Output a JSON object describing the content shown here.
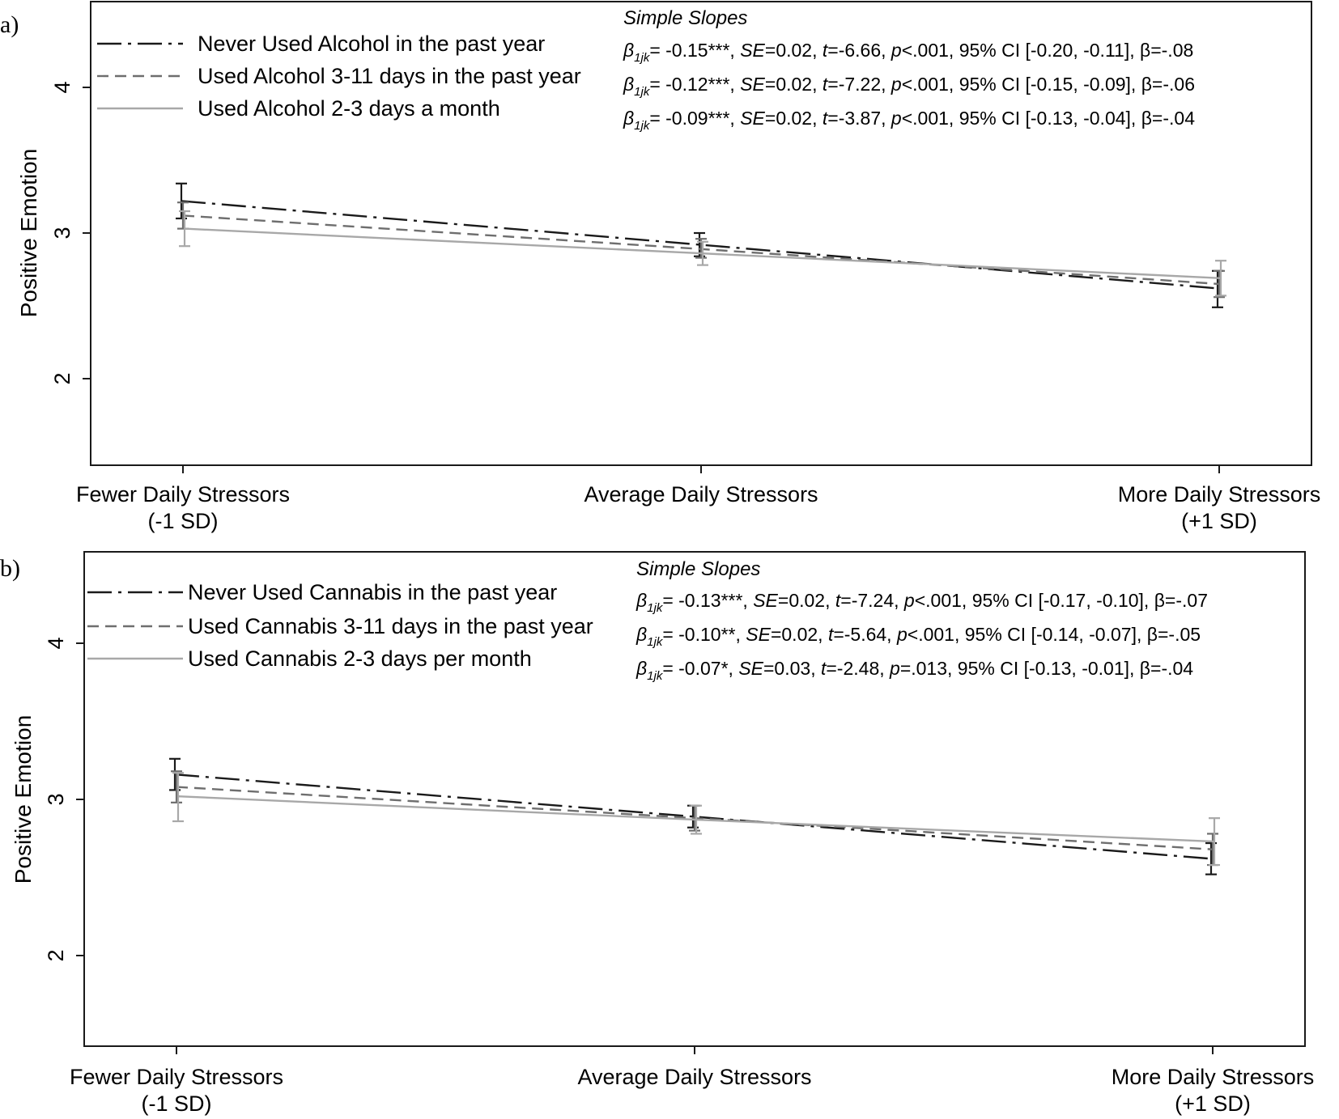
{
  "chart_data": [
    {
      "type": "line",
      "panel": "a)",
      "ylabel": "Positive Emotion",
      "ylim": [
        1.4,
        4.6
      ],
      "yticks": [
        "2",
        "3",
        "4"
      ],
      "categories": [
        {
          "line1": "Fewer Daily Stressors",
          "line2": "(-1 SD)"
        },
        {
          "line1": "Average Daily Stressors",
          "line2": ""
        },
        {
          "line1": "More Daily Stressors",
          "line2": "(+1 SD)"
        }
      ],
      "stats_title": "Simple Slopes",
      "series": [
        {
          "name": "Never Used Alcohol in the past year",
          "style": "dashdot",
          "color": "#1a1a1a",
          "values": [
            3.22,
            2.92,
            2.62
          ],
          "ci_low": [
            3.1,
            2.84,
            2.49
          ],
          "ci_high": [
            3.34,
            3.0,
            2.74
          ],
          "stat": {
            "estimate": "= -0.15***",
            "se": "=0.02",
            "t": "=-6.66",
            "p": "<.001",
            "ci": "95% CI [-0.20, -0.11]",
            "std_beta": "β=-.08"
          }
        },
        {
          "name": "Used Alcohol 3-11 days in the past year",
          "style": "dashed",
          "color": "#6e6e6e",
          "values": [
            3.12,
            2.89,
            2.65
          ],
          "ci_low": [
            3.03,
            2.83,
            2.56
          ],
          "ci_high": [
            3.21,
            2.96,
            2.74
          ],
          "stat": {
            "estimate": "= -0.12***",
            "se": "=0.02",
            "t": "=-7.22",
            "p": "<.001",
            "ci": "95% CI [-0.15, -0.09]",
            "std_beta": "β=-.06"
          }
        },
        {
          "name": "Used Alcohol 2-3 days a month",
          "style": "solid",
          "color": "#a8a8a8",
          "values": [
            3.03,
            2.86,
            2.69
          ],
          "ci_low": [
            2.91,
            2.78,
            2.57
          ],
          "ci_high": [
            3.15,
            2.94,
            2.81
          ],
          "stat": {
            "estimate": "= -0.09***",
            "se": "=0.02",
            "t": "=-3.87",
            "p": "<.001",
            "ci": "95% CI [-0.13, -0.04]",
            "std_beta": "β=-.04"
          }
        }
      ]
    },
    {
      "type": "line",
      "panel": "b)",
      "ylabel": "Positive Emotion",
      "ylim": [
        1.4,
        4.6
      ],
      "yticks": [
        "2",
        "3",
        "4"
      ],
      "categories": [
        {
          "line1": "Fewer Daily Stressors",
          "line2": "(-1 SD)"
        },
        {
          "line1": "Average Daily Stressors",
          "line2": ""
        },
        {
          "line1": "More Daily Stressors",
          "line2": "(+1 SD)"
        }
      ],
      "stats_title": "Simple Slopes",
      "series": [
        {
          "name": "Never Used Cannabis in the past year",
          "style": "dashdot",
          "color": "#1a1a1a",
          "values": [
            3.16,
            2.89,
            2.62
          ],
          "ci_low": [
            3.06,
            2.82,
            2.52
          ],
          "ci_high": [
            3.26,
            2.96,
            2.72
          ],
          "stat": {
            "estimate": "= -0.13***",
            "se": "=0.02",
            "t": "=-7.24",
            "p": "<.001",
            "ci": "95% CI [-0.17, -0.10]",
            "std_beta": "β=-.07"
          }
        },
        {
          "name": "Used Cannabis 3-11 days in the past year",
          "style": "dashed",
          "color": "#6e6e6e",
          "values": [
            3.08,
            2.88,
            2.68
          ],
          "ci_low": [
            2.98,
            2.8,
            2.58
          ],
          "ci_high": [
            3.18,
            2.96,
            2.78
          ],
          "stat": {
            "estimate": "= -0.10**",
            "se": "=0.02",
            "t": "=-5.64",
            "p": "<.001",
            "ci": "95% CI [-0.14, -0.07]",
            "std_beta": "β=-.05"
          }
        },
        {
          "name": "Used Cannabis 2-3 days per month",
          "style": "solid",
          "color": "#a8a8a8",
          "values": [
            3.02,
            2.87,
            2.73
          ],
          "ci_low": [
            2.86,
            2.78,
            2.58
          ],
          "ci_high": [
            3.17,
            2.96,
            2.88
          ],
          "stat": {
            "estimate": "= -0.07*",
            "se": "=0.03",
            "t": "=-2.48",
            "p": "=.013",
            "ci": "95% CI [-0.13, -0.01]",
            "std_beta": "β=-.04"
          }
        }
      ]
    }
  ]
}
